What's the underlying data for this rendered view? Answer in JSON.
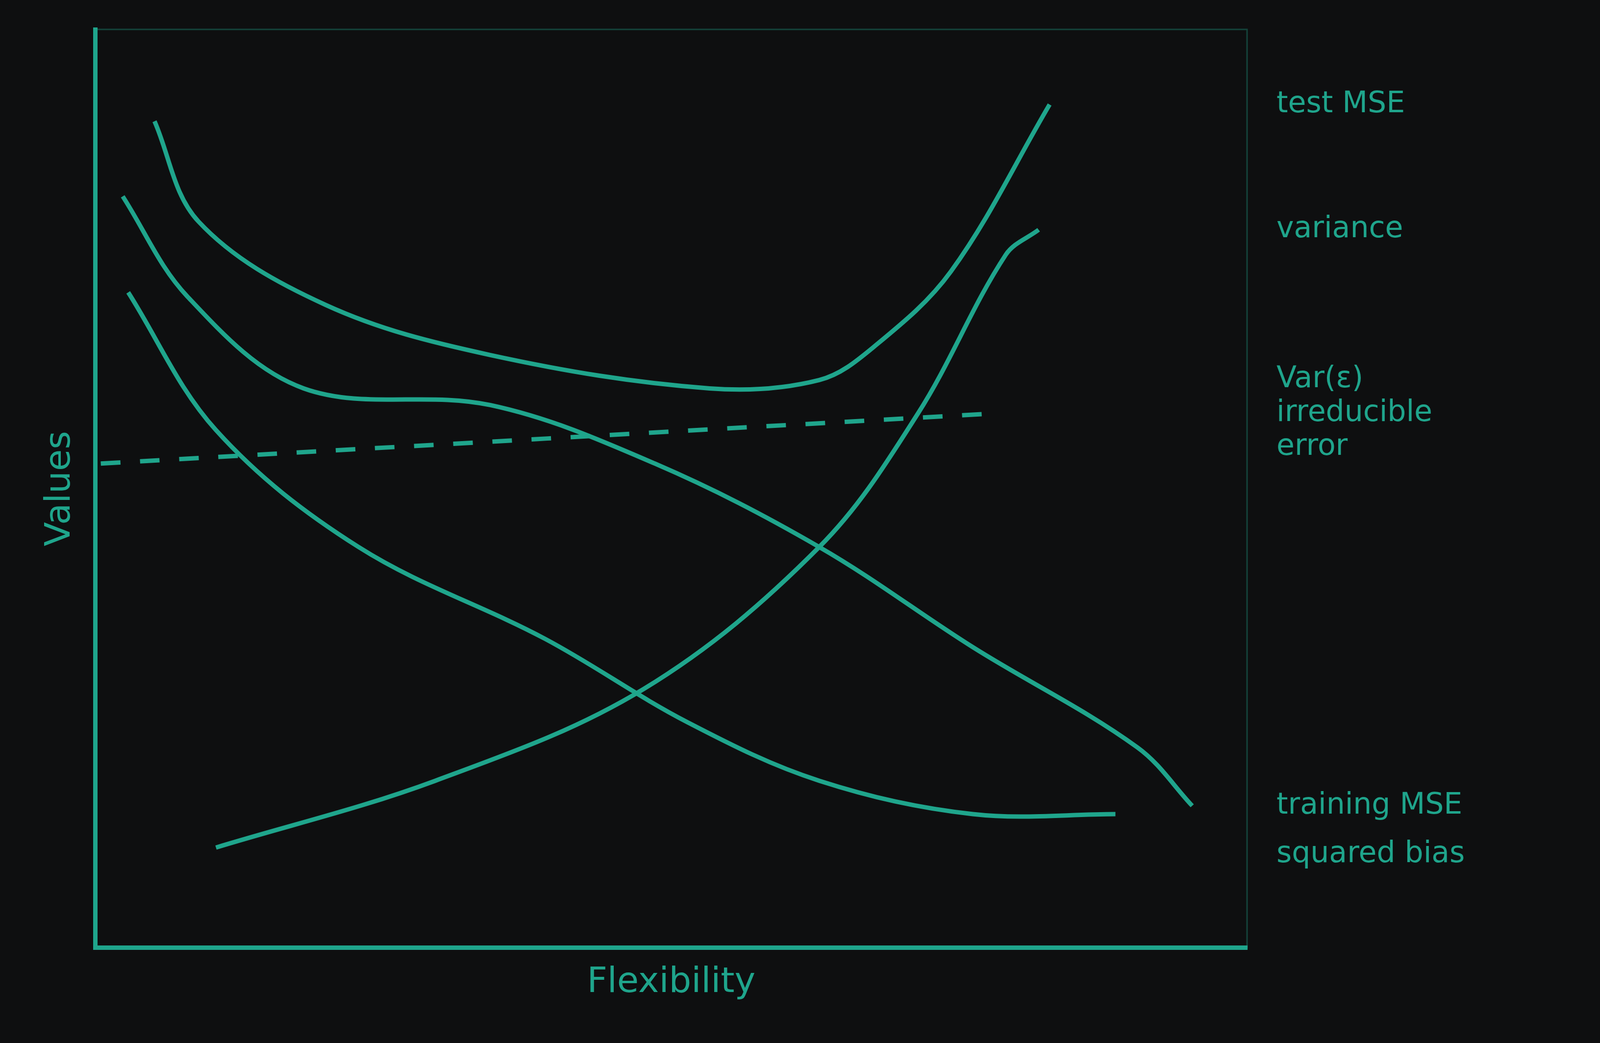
{
  "chart_data": {
    "type": "line",
    "x_label": "Flexibility",
    "y_label": "Values",
    "xlim": [
      0,
      10.5
    ],
    "ylim": [
      0,
      11
    ],
    "grid": false,
    "tick_labels": false,
    "series": [
      {
        "name": "test MSE",
        "color": "#1fa58c",
        "line_style": "solid",
        "x": [
          0.54,
          0.94,
          2.1,
          3.6,
          5.6,
          6.6,
          7.1,
          7.8,
          8.7
        ],
        "values": [
          9.9,
          8.7,
          7.7,
          7.1,
          6.7,
          6.8,
          7.2,
          8.1,
          10.1
        ]
      },
      {
        "name": "variance",
        "color": "#1fa58c",
        "line_style": "solid",
        "x": [
          1.1,
          3.1,
          5.0,
          6.6,
          7.5,
          8.3,
          8.6
        ],
        "values": [
          1.2,
          2.0,
          3.1,
          4.8,
          6.4,
          8.3,
          8.6
        ]
      },
      {
        "name": "Var(ε) irreducible error",
        "color": "#1fa58c",
        "line_style": "dashed",
        "x": [
          0.05,
          8.2
        ],
        "values": [
          5.8,
          6.4
        ]
      },
      {
        "name": "training MSE",
        "color": "#1fa58c",
        "line_style": "solid",
        "x": [
          0.25,
          0.84,
          1.9,
          3.6,
          5.1,
          6.6,
          8.0,
          9.5,
          10.0
        ],
        "values": [
          9.0,
          7.8,
          6.7,
          6.5,
          5.8,
          4.8,
          3.6,
          2.4,
          1.7
        ]
      },
      {
        "name": "squared bias",
        "color": "#1fa58c",
        "line_style": "solid",
        "x": [
          0.3,
          1.1,
          2.4,
          4.1,
          5.4,
          6.6,
          8.0,
          9.3
        ],
        "values": [
          7.85,
          6.2,
          4.8,
          3.7,
          2.7,
          2.0,
          1.6,
          1.6
        ]
      }
    ]
  }
}
